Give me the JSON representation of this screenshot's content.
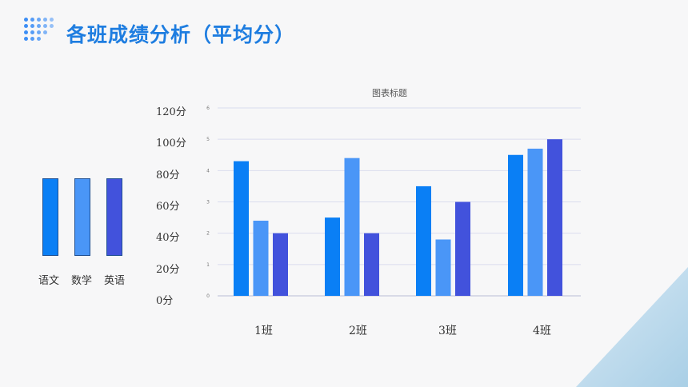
{
  "page": {
    "title": "各班成绩分析（平均分）"
  },
  "legend": [
    {
      "label": "语文",
      "color": "#0a7ff5"
    },
    {
      "label": "数学",
      "color": "#4a96f7"
    },
    {
      "label": "英语",
      "color": "#4252dc"
    }
  ],
  "score_axis": {
    "labels": [
      "120分",
      "100分",
      "80分",
      "60分",
      "40分",
      "20分",
      "0分"
    ]
  },
  "chart_data": {
    "type": "bar",
    "title": "图表标题",
    "categories": [
      "1班",
      "2班",
      "3班",
      "4班"
    ],
    "series": [
      {
        "values": [
          4.3,
          2.5,
          3.5,
          4.5
        ]
      },
      {
        "values": [
          2.4,
          4.4,
          1.8,
          4.7
        ]
      },
      {
        "values": [
          2.0,
          2.0,
          3.0,
          5.0
        ]
      }
    ],
    "ylim": [
      0,
      6
    ],
    "yticks": [
      "0",
      "1",
      "2",
      "3",
      "4",
      "5",
      "6"
    ],
    "grid": true
  }
}
